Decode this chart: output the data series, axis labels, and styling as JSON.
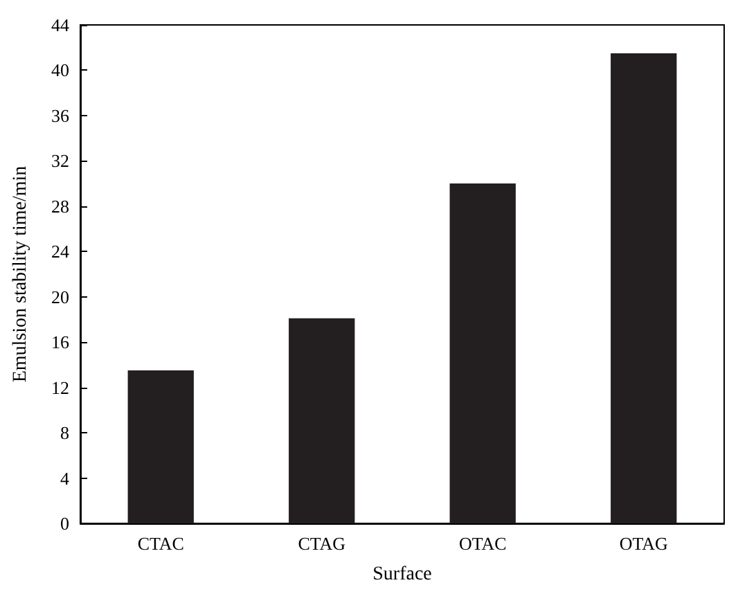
{
  "chart_data": {
    "type": "bar",
    "xlabel": "Surface",
    "ylabel": "Emulsion stability time/min",
    "categories": [
      "CTAC",
      "CTAG",
      "OTAC",
      "OTAG"
    ],
    "values": [
      13.5,
      18.1,
      30.0,
      41.5
    ],
    "color": "#231f20",
    "ylim": [
      0,
      44
    ],
    "yticks": [
      0,
      4,
      8,
      12,
      16,
      20,
      24,
      28,
      32,
      36,
      40,
      44
    ],
    "grid": false
  }
}
